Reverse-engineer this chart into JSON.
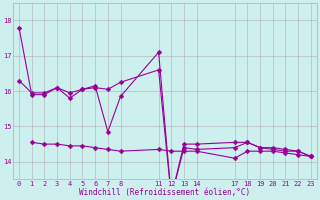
{
  "xlabel": "Windchill (Refroidissement éolien,°C)",
  "background_color": "#cdf0ee",
  "grid_color": "#b0b0b0",
  "line_color": "#990099",
  "series": [
    {
      "x": [
        0,
        1,
        2,
        3,
        4,
        5,
        6,
        7,
        8,
        11,
        12,
        13,
        14,
        17,
        18,
        19,
        20,
        21,
        22,
        23
      ],
      "y": [
        16.3,
        15.95,
        15.95,
        16.1,
        15.95,
        16.05,
        16.1,
        16.05,
        16.25,
        16.6,
        13.0,
        14.5,
        14.5,
        14.55,
        14.55,
        14.4,
        14.4,
        14.35,
        14.3,
        14.15
      ]
    },
    {
      "x": [
        0,
        1,
        2,
        3,
        4,
        5,
        6,
        7,
        8,
        11,
        12,
        13,
        14,
        17,
        18,
        19,
        20,
        21,
        22,
        23
      ],
      "y": [
        17.8,
        15.9,
        15.9,
        16.1,
        15.8,
        16.05,
        16.15,
        14.85,
        15.85,
        17.1,
        13.0,
        14.4,
        14.35,
        14.4,
        14.55,
        14.4,
        14.35,
        14.3,
        14.3,
        14.15
      ]
    },
    {
      "x": [
        1,
        2,
        3,
        4,
        5,
        6,
        7,
        8,
        11,
        12,
        13,
        14,
        17,
        18,
        19,
        20,
        21,
        22,
        23
      ],
      "y": [
        14.55,
        14.5,
        14.5,
        14.45,
        14.45,
        14.4,
        14.35,
        14.3,
        14.35,
        14.3,
        14.3,
        14.3,
        14.1,
        14.3,
        14.3,
        14.3,
        14.25,
        14.2,
        14.15
      ]
    }
  ],
  "ylim": [
    13.5,
    18.5
  ],
  "yticks": [
    14,
    15,
    16,
    17,
    18
  ],
  "ytick_labels": [
    "14",
    "15",
    "16",
    "17",
    "18"
  ],
  "xticks": [
    0,
    1,
    2,
    3,
    4,
    5,
    6,
    7,
    8,
    11,
    12,
    13,
    14,
    17,
    18,
    19,
    20,
    21,
    22,
    23
  ],
  "xtick_labels": [
    "0",
    "1",
    "2",
    "3",
    "4",
    "5",
    "6",
    "7",
    "8",
    "11",
    "12",
    "13",
    "14",
    "17",
    "18",
    "19",
    "20",
    "21",
    "22",
    "23"
  ],
  "xlim": [
    -0.5,
    23.5
  ],
  "markersize": 2.5,
  "linewidth": 0.8,
  "tick_fontsize": 5,
  "xlabel_fontsize": 5.5
}
